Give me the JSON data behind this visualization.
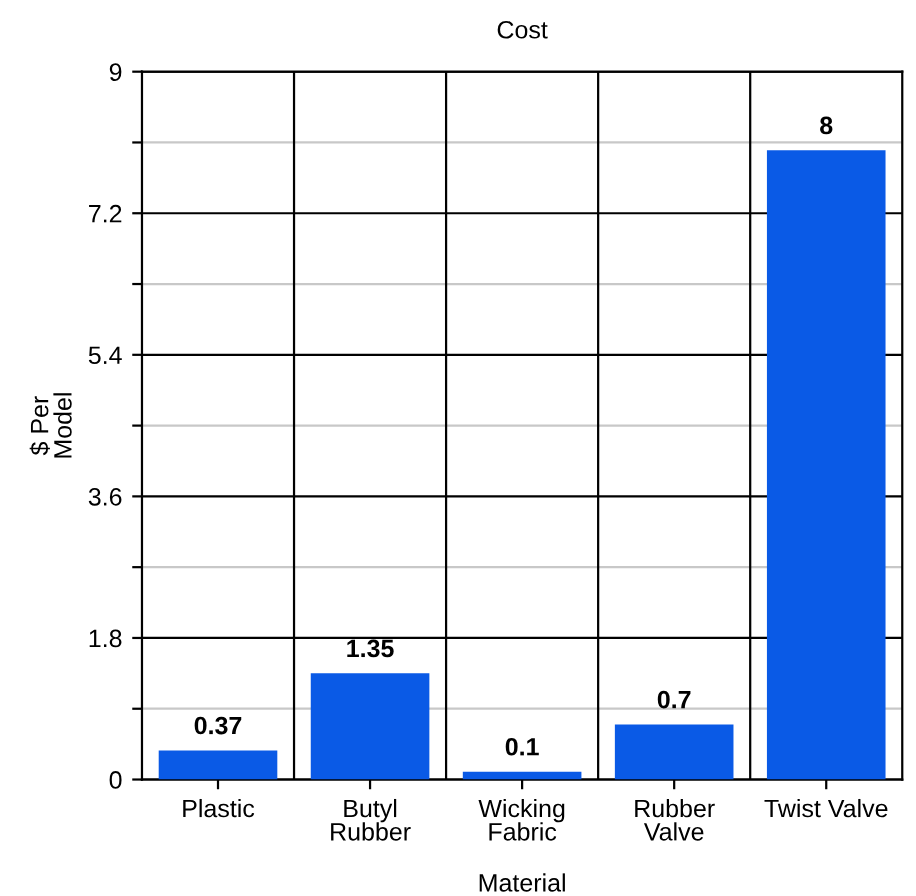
{
  "chart_data": {
    "type": "bar",
    "title": "Cost",
    "xlabel": "Material",
    "ylabel": "$ Per\nModel",
    "categories": [
      "Plastic",
      "Butyl\nRubber",
      "Wicking\nFabric",
      "Rubber\nValve",
      "Twist Valve"
    ],
    "values": [
      0.37,
      1.35,
      0.1,
      0.7,
      8
    ],
    "color": "#0a5ae6",
    "data_labels": true,
    "grid": true,
    "ylim": [
      0,
      9
    ],
    "yticks": [
      0,
      {
        "value": 0.9,
        "label": null
      },
      1.8,
      {
        "value": 2.7,
        "label": null
      },
      3.6,
      {
        "value": 4.5,
        "label": null
      },
      5.4,
      {
        "value": 6.3,
        "label": null
      },
      7.2,
      {
        "value": 8.1,
        "label": null
      },
      9
    ]
  }
}
